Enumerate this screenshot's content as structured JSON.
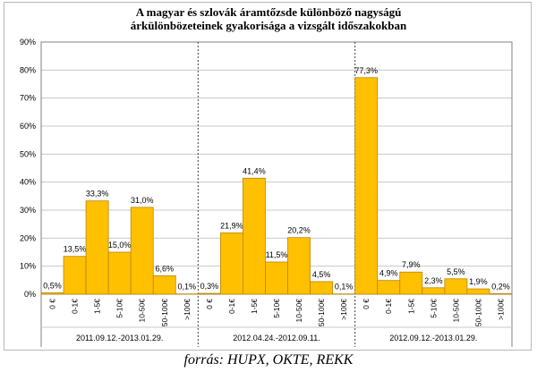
{
  "title_line1": "A magyar és szlovák áramtőzsde különböző nagyságú",
  "title_line2": "árkülönbözeteinek gyakorisága a vizsgált időszakokban",
  "source": "forrás: HUPX, OKTE, REKK",
  "chart_data": {
    "type": "bar",
    "ylim": [
      0,
      90
    ],
    "yticks": [
      0,
      10,
      20,
      30,
      40,
      50,
      60,
      70,
      80,
      90
    ],
    "ytick_labels": [
      "0%",
      "10%",
      "20%",
      "30%",
      "40%",
      "50%",
      "60%",
      "70%",
      "80%",
      "90%"
    ],
    "grid": true,
    "bar_color": "#ffc000",
    "bar_stroke": "#b8860b",
    "categories": [
      "0 €",
      "0-1€",
      "1-5€",
      "5-10€",
      "10-50€",
      "50-100€",
      ">100€"
    ],
    "groups": [
      {
        "label": "2011.09.12.-2013.01.29.",
        "values": [
          0.5,
          13.5,
          33.3,
          15.0,
          31.0,
          6.6,
          0.1
        ],
        "data_labels": [
          "0,5%",
          "13,5%",
          "33,3%",
          "15,0%",
          "31,0%",
          "6,6%",
          "0,1%"
        ]
      },
      {
        "label": "2012.04.24.-2012.09.11.",
        "values": [
          0.3,
          21.9,
          41.4,
          11.5,
          20.2,
          4.5,
          0.1
        ],
        "data_labels": [
          "0,3%",
          "21,9%",
          "41,4%",
          "11,5%",
          "20,2%",
          "4,5%",
          "0,1%"
        ]
      },
      {
        "label": "2012.09.12.-2013.01.29.",
        "values": [
          77.3,
          4.9,
          7.9,
          2.3,
          5.5,
          1.9,
          0.2
        ],
        "data_labels": [
          "77,3%",
          "4,9%",
          "7,9%",
          "2,3%",
          "5,5%",
          "1,9%",
          "0,2%"
        ]
      }
    ]
  }
}
